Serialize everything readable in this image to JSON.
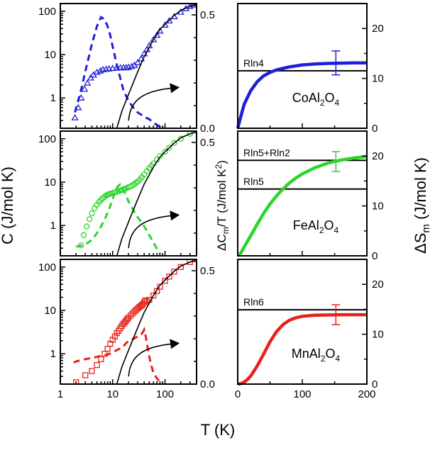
{
  "figure": {
    "left_ylabel": "C (J/mol K)",
    "mid_ylabel": "ΔC_m/T (J/mol K^2)",
    "right_ylabel": "ΔS_m (J/mol K)",
    "xlabel": "T (K)"
  },
  "chart_data": [
    {
      "id": "co-c",
      "type": "scatter",
      "compound": "CoAl2O4",
      "xscale": "log",
      "xlim": [
        1,
        400
      ],
      "yscale": "log",
      "ylim": [
        0.2,
        150
      ],
      "y2lim": [
        0,
        0.55
      ],
      "xticks": [
        "1",
        "10",
        "100"
      ],
      "yticks": [
        "1",
        "10",
        "100"
      ],
      "y2ticks": [
        "0.0",
        "0.5"
      ],
      "color": "#1f1fd6",
      "series": [
        {
          "kind": "markers",
          "marker": "triangle",
          "x": [
            1.9,
            2.2,
            2.5,
            2.9,
            3.3,
            3.8,
            4.3,
            5,
            5.8,
            6.5,
            7.5,
            8.5,
            10,
            12,
            14,
            16,
            18,
            20,
            23,
            26,
            30,
            35,
            40,
            45,
            50,
            60,
            70,
            80,
            100,
            120,
            150,
            200,
            250,
            300,
            350,
            400
          ],
          "y": [
            0.35,
            0.6,
            1.0,
            1.6,
            2.2,
            2.9,
            3.4,
            3.9,
            4.2,
            4.5,
            4.6,
            4.7,
            4.8,
            4.9,
            4.95,
            5.0,
            5.0,
            5.1,
            5.3,
            5.7,
            6.5,
            8.0,
            10.5,
            13,
            16,
            22,
            28,
            35,
            48,
            60,
            75,
            95,
            115,
            130,
            140,
            150
          ]
        },
        {
          "kind": "dashed",
          "axis": "right",
          "x": [
            1.9,
            2.5,
            3,
            4,
            5,
            6,
            7,
            8,
            9,
            10,
            12,
            14,
            16,
            20,
            25,
            30,
            35,
            40,
            50,
            60,
            70,
            80,
            100
          ],
          "y": [
            0.07,
            0.17,
            0.25,
            0.37,
            0.45,
            0.49,
            0.48,
            0.45,
            0.41,
            0.36,
            0.28,
            0.22,
            0.17,
            0.12,
            0.09,
            0.07,
            0.06,
            0.05,
            0.04,
            0.025,
            0.015,
            0.008,
            0.002
          ]
        },
        {
          "kind": "lattice",
          "x": [
            12,
            15,
            20,
            30,
            40,
            60,
            80,
            100,
            150,
            200,
            300,
            400
          ],
          "y": [
            0.2,
            0.5,
            1.2,
            4,
            9,
            22,
            38,
            50,
            80,
            105,
            130,
            145
          ]
        }
      ],
      "arrow": "right"
    },
    {
      "id": "co-s",
      "type": "line",
      "compound": "CoAl2O4",
      "xlim": [
        0,
        200
      ],
      "ylim": [
        0,
        25
      ],
      "xticks": [],
      "yticks": [
        "0",
        "10",
        "20"
      ],
      "color": "#1f1fd6",
      "ref_lines": [
        {
          "label": "Rln4",
          "y": 11.53
        }
      ],
      "curve": {
        "x": [
          0,
          5,
          10,
          20,
          30,
          40,
          50,
          60,
          70,
          80,
          90,
          100,
          120,
          140,
          160,
          180,
          200
        ],
        "y": [
          0,
          2.5,
          4.8,
          7.5,
          9.3,
          10.5,
          11.2,
          11.7,
          12.0,
          12.3,
          12.5,
          12.7,
          12.9,
          13.0,
          13.05,
          13.1,
          13.1
        ]
      },
      "errorbar": {
        "x": 152,
        "y": 13.1,
        "err": 2.4
      }
    },
    {
      "id": "fe-c",
      "type": "scatter",
      "compound": "FeAl2O4",
      "xscale": "log",
      "xlim": [
        1,
        400
      ],
      "yscale": "log",
      "ylim": [
        0.2,
        150
      ],
      "y2lim": [
        0,
        0.55
      ],
      "xticks": [
        "1",
        "10",
        "100"
      ],
      "yticks": [
        "1",
        "10",
        "100"
      ],
      "y2ticks": [
        "0.5"
      ],
      "color": "#2bd42b",
      "series": [
        {
          "kind": "markers",
          "marker": "circle",
          "x": [
            2.5,
            2.8,
            3.2,
            3.6,
            4,
            4.5,
            5,
            5.5,
            6,
            6.5,
            7,
            7.5,
            8,
            8.5,
            9,
            10,
            11,
            12,
            13,
            14,
            15,
            16,
            17,
            18,
            20,
            22,
            24,
            26,
            28,
            30,
            33,
            36,
            40,
            45,
            50,
            55,
            60,
            70,
            80,
            100,
            120,
            150,
            200,
            300,
            400
          ],
          "y": [
            0.35,
            0.6,
            0.95,
            1.4,
            1.9,
            2.5,
            3.0,
            3.5,
            3.9,
            4.3,
            4.6,
            4.9,
            5.1,
            5.3,
            5.4,
            5.6,
            5.8,
            6.0,
            6.2,
            6.4,
            6.6,
            6.8,
            7.0,
            7.2,
            7.6,
            8.0,
            8.5,
            9.0,
            9.6,
            10.2,
            11.5,
            13,
            15,
            18,
            21,
            24,
            27,
            33,
            40,
            50,
            62,
            80,
            100,
            130,
            150
          ]
        },
        {
          "kind": "dashed",
          "axis": "right",
          "x": [
            2,
            2.5,
            3,
            4,
            5,
            6,
            7,
            8,
            9,
            10,
            11,
            12,
            13,
            14,
            15,
            17,
            20,
            25,
            30,
            35,
            40,
            45,
            50,
            60,
            70,
            80
          ],
          "y": [
            0.04,
            0.045,
            0.05,
            0.07,
            0.1,
            0.13,
            0.16,
            0.19,
            0.22,
            0.25,
            0.28,
            0.3,
            0.31,
            0.315,
            0.31,
            0.28,
            0.24,
            0.2,
            0.17,
            0.15,
            0.13,
            0.11,
            0.09,
            0.06,
            0.03,
            0.01
          ]
        },
        {
          "kind": "lattice",
          "x": [
            12,
            15,
            20,
            30,
            40,
            60,
            80,
            100,
            150,
            200,
            300,
            400
          ],
          "y": [
            0.2,
            0.5,
            1.2,
            4,
            9,
            22,
            38,
            50,
            80,
            105,
            130,
            145
          ]
        }
      ],
      "arrow": "right"
    },
    {
      "id": "fe-s",
      "type": "line",
      "compound": "FeAl2O4",
      "xlim": [
        0,
        200
      ],
      "ylim": [
        0,
        25
      ],
      "xticks": [],
      "yticks": [
        "0",
        "10",
        "20"
      ],
      "color": "#2bd42b",
      "ref_lines": [
        {
          "label": "Rln5+Rln2",
          "y": 19.14
        },
        {
          "label": "Rln5",
          "y": 13.38
        }
      ],
      "curve": {
        "x": [
          0,
          5,
          10,
          20,
          30,
          40,
          50,
          60,
          70,
          80,
          90,
          100,
          120,
          140,
          160,
          180,
          200
        ],
        "y": [
          0,
          0.6,
          1.8,
          4.0,
          6.3,
          8.5,
          10.4,
          12.0,
          13.4,
          14.6,
          15.6,
          16.4,
          17.7,
          18.6,
          19.2,
          19.6,
          19.9
        ]
      },
      "errorbar": {
        "x": 152,
        "y": 18.9,
        "err": 2.0
      }
    },
    {
      "id": "mn-c",
      "type": "scatter",
      "compound": "MnAl2O4",
      "xscale": "log",
      "xlim": [
        1,
        400
      ],
      "yscale": "log",
      "ylim": [
        0.2,
        150
      ],
      "y2lim": [
        0,
        0.55
      ],
      "xticks": [
        "1",
        "10",
        "100"
      ],
      "yticks": [
        "1",
        "10",
        "100"
      ],
      "y2ticks": [
        "0.0",
        "0.5"
      ],
      "color": "#e8211a",
      "series": [
        {
          "kind": "markers",
          "marker": "square",
          "x": [
            2,
            3,
            4,
            5,
            6,
            7,
            8,
            9,
            10,
            11,
            12,
            13,
            14,
            15,
            16,
            17,
            18,
            19,
            20,
            22,
            24,
            26,
            28,
            30,
            32,
            34,
            36,
            38,
            40,
            42,
            45,
            50,
            60,
            70,
            80,
            100,
            120,
            150,
            200,
            300,
            400
          ],
          "y": [
            0.22,
            0.32,
            0.4,
            0.55,
            0.75,
            1.0,
            1.3,
            1.7,
            2.1,
            2.5,
            3.0,
            3.4,
            3.9,
            4.4,
            4.9,
            5.3,
            5.8,
            6.3,
            6.8,
            7.6,
            8.5,
            9.4,
            10.2,
            11.0,
            11.8,
            12.5,
            13.2,
            14.0,
            15.5,
            17.0,
            16.0,
            17.5,
            22,
            28,
            35,
            48,
            60,
            78,
            100,
            130,
            150
          ]
        },
        {
          "kind": "dashed",
          "axis": "right",
          "x": [
            1.8,
            2,
            3,
            4,
            5,
            6,
            8,
            10,
            12,
            15,
            18,
            20,
            25,
            30,
            35,
            38,
            40,
            42,
            45,
            50,
            55,
            60,
            70,
            80,
            90
          ],
          "y": [
            0.095,
            0.1,
            0.11,
            0.115,
            0.12,
            0.125,
            0.13,
            0.14,
            0.15,
            0.16,
            0.18,
            0.19,
            0.2,
            0.21,
            0.22,
            0.23,
            0.24,
            0.22,
            0.18,
            0.12,
            0.08,
            0.05,
            0.025,
            0.01,
            0.003
          ]
        },
        {
          "kind": "lattice",
          "x": [
            12,
            15,
            20,
            30,
            40,
            60,
            80,
            100,
            150,
            200,
            300,
            400
          ],
          "y": [
            0.2,
            0.5,
            1.2,
            4,
            9,
            22,
            38,
            50,
            80,
            105,
            130,
            145
          ]
        }
      ],
      "arrow": "right"
    },
    {
      "id": "mn-s",
      "type": "line",
      "compound": "MnAl2O4",
      "xlim": [
        0,
        200
      ],
      "ylim": [
        0,
        25
      ],
      "xticks": [
        "0",
        "100",
        "200"
      ],
      "yticks": [
        "0",
        "10",
        "20"
      ],
      "color": "#e8211a",
      "ref_lines": [
        {
          "label": "Rln6",
          "y": 14.9
        }
      ],
      "curve": {
        "x": [
          0,
          5,
          10,
          15,
          20,
          30,
          40,
          50,
          60,
          70,
          80,
          90,
          100,
          120,
          140,
          160,
          180,
          200
        ],
        "y": [
          0,
          0.1,
          0.4,
          0.9,
          1.6,
          3.6,
          6.0,
          8.5,
          10.5,
          11.9,
          12.8,
          13.3,
          13.6,
          13.8,
          13.85,
          13.9,
          13.9,
          13.9
        ]
      },
      "errorbar": {
        "x": 152,
        "y": 13.9,
        "err": 2.0
      }
    }
  ]
}
